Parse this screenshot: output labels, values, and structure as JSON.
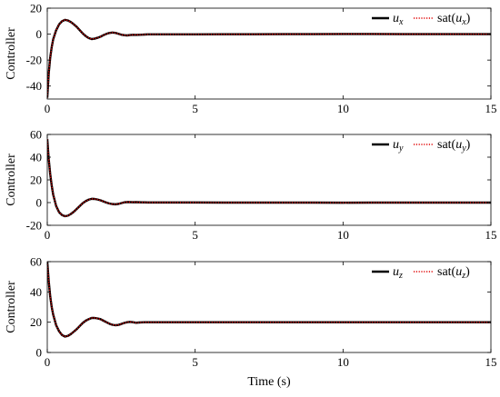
{
  "colors": {
    "u_line": "#000000",
    "sat_line": "#e00000",
    "axes": "#000000",
    "background": "#ffffff"
  },
  "chart_data": [
    {
      "type": "line",
      "ylabel": "Controller",
      "xlabel": "",
      "xlim": [
        0,
        15
      ],
      "ylim": [
        -50,
        20
      ],
      "xticks": [
        0,
        5,
        10,
        15
      ],
      "yticks": [
        -40,
        -20,
        0,
        20
      ],
      "legend": {
        "placement": "top-right",
        "u_symbol": "u",
        "u_sub": "x",
        "sat_prefix": "sat(",
        "sat_symbol": "u",
        "sat_sub": "x",
        "sat_suffix": ")"
      },
      "series": [
        {
          "style": "solid",
          "x": [
            0,
            0.05,
            0.1,
            0.15,
            0.2,
            0.3,
            0.4,
            0.5,
            0.6,
            0.7,
            0.8,
            0.9,
            1.0,
            1.1,
            1.2,
            1.3,
            1.4,
            1.5,
            1.6,
            1.7,
            1.8,
            1.9,
            2.0,
            2.1,
            2.2,
            2.3,
            2.4,
            2.5,
            2.6,
            2.7,
            2.8,
            2.9,
            3.0,
            3.1,
            3.2,
            3.3,
            3.4,
            3.5,
            4.0,
            5.0,
            6.0,
            7.0,
            8.0,
            9.0,
            10.0,
            11.0,
            12.0,
            13.0,
            14.0,
            15.0
          ],
          "y": [
            -49,
            -30,
            -18,
            -10,
            -4,
            3,
            7.5,
            10,
            11,
            10.5,
            9.3,
            7.5,
            5.5,
            3,
            0.5,
            -1.5,
            -3,
            -3.8,
            -3.5,
            -2.8,
            -2,
            -0.8,
            0.2,
            0.9,
            1.2,
            1,
            0.3,
            -0.4,
            -0.8,
            -1,
            -0.7,
            -0.5,
            -0.6,
            -0.5,
            -0.4,
            -0.3,
            -0.2,
            -0.2,
            -0.2,
            -0.2,
            -0.1,
            -0.1,
            0,
            0,
            0.1,
            0.1,
            0,
            0,
            0,
            0
          ]
        },
        {
          "style": "dotted",
          "x": [
            0,
            0.05,
            0.1,
            0.15,
            0.2,
            0.3,
            0.4,
            0.5,
            0.6,
            0.7,
            0.8,
            0.9,
            1.0,
            1.1,
            1.2,
            1.3,
            1.4,
            1.5,
            1.6,
            1.7,
            1.8,
            1.9,
            2.0,
            2.1,
            2.2,
            2.3,
            2.4,
            2.5,
            2.6,
            2.7,
            2.8,
            2.9,
            3.0,
            3.1,
            3.2,
            3.3,
            3.4,
            3.5,
            4.0,
            5.0,
            6.0,
            7.0,
            8.0,
            9.0,
            10.0,
            11.0,
            12.0,
            13.0,
            14.0,
            15.0
          ],
          "y": [
            -49,
            -30,
            -18,
            -10,
            -4,
            3,
            7.5,
            10,
            11,
            10.5,
            9.3,
            7.5,
            5.5,
            3,
            0.5,
            -1.5,
            -3,
            -3.8,
            -3.5,
            -2.8,
            -2,
            -0.8,
            0.2,
            0.9,
            1.2,
            1,
            0.3,
            -0.4,
            -0.8,
            -1,
            -0.7,
            -0.5,
            -0.6,
            -0.5,
            -0.4,
            -0.3,
            -0.2,
            -0.2,
            -0.2,
            -0.2,
            -0.1,
            -0.1,
            0,
            0,
            0.1,
            0.1,
            0,
            0,
            0,
            0
          ]
        }
      ]
    },
    {
      "type": "line",
      "ylabel": "Controller",
      "xlabel": "",
      "xlim": [
        0,
        15
      ],
      "ylim": [
        -20,
        60
      ],
      "xticks": [
        0,
        5,
        10,
        15
      ],
      "yticks": [
        -20,
        0,
        20,
        40,
        60
      ],
      "legend": {
        "placement": "top-right",
        "u_symbol": "u",
        "u_sub": "y",
        "sat_prefix": "sat(",
        "sat_symbol": "u",
        "sat_sub": "y",
        "sat_suffix": ")"
      },
      "series": [
        {
          "style": "solid",
          "x": [
            0,
            0.05,
            0.1,
            0.15,
            0.2,
            0.3,
            0.4,
            0.5,
            0.6,
            0.7,
            0.8,
            0.9,
            1.0,
            1.1,
            1.2,
            1.3,
            1.4,
            1.5,
            1.6,
            1.7,
            1.8,
            1.9,
            2.0,
            2.1,
            2.2,
            2.3,
            2.4,
            2.5,
            2.6,
            2.7,
            2.8,
            2.9,
            3.0,
            3.1,
            3.2,
            3.3,
            3.4,
            3.5,
            4.0,
            5.0,
            6.0,
            7.0,
            8.0,
            9.0,
            10.0,
            11.0,
            12.0,
            13.0,
            14.0,
            15.0
          ],
          "y": [
            56,
            38,
            25,
            15,
            7,
            -3,
            -8.5,
            -11,
            -12,
            -11.5,
            -10,
            -8,
            -5.5,
            -3,
            -0.5,
            1.3,
            2.6,
            3.3,
            3.2,
            2.7,
            2,
            1,
            0,
            -0.8,
            -1.3,
            -1.5,
            -1.2,
            -0.5,
            0.2,
            0.5,
            0.4,
            0.3,
            0.4,
            0.3,
            0.2,
            0.2,
            0.1,
            0.1,
            0.1,
            0.1,
            0,
            0,
            0,
            0,
            -0.1,
            0,
            0,
            0,
            0,
            0
          ]
        },
        {
          "style": "dotted",
          "x": [
            0,
            0.05,
            0.1,
            0.15,
            0.2,
            0.3,
            0.4,
            0.5,
            0.6,
            0.7,
            0.8,
            0.9,
            1.0,
            1.1,
            1.2,
            1.3,
            1.4,
            1.5,
            1.6,
            1.7,
            1.8,
            1.9,
            2.0,
            2.1,
            2.2,
            2.3,
            2.4,
            2.5,
            2.6,
            2.7,
            2.8,
            2.9,
            3.0,
            3.1,
            3.2,
            3.3,
            3.4,
            3.5,
            4.0,
            5.0,
            6.0,
            7.0,
            8.0,
            9.0,
            10.0,
            11.0,
            12.0,
            13.0,
            14.0,
            15.0
          ],
          "y": [
            56,
            38,
            25,
            15,
            7,
            -3,
            -8.5,
            -11,
            -12,
            -11.5,
            -10,
            -8,
            -5.5,
            -3,
            -0.5,
            1.3,
            2.6,
            3.3,
            3.2,
            2.7,
            2,
            1,
            0,
            -0.8,
            -1.3,
            -1.5,
            -1.2,
            -0.5,
            0.2,
            0.5,
            0.4,
            0.3,
            0.4,
            0.3,
            0.2,
            0.2,
            0.1,
            0.1,
            0.1,
            0.1,
            0,
            0,
            0,
            0,
            -0.1,
            0,
            0,
            0,
            0,
            0
          ]
        }
      ]
    },
    {
      "type": "line",
      "ylabel": "Controller",
      "xlabel": "Time (s)",
      "xlim": [
        0,
        15
      ],
      "ylim": [
        0,
        60
      ],
      "xticks": [
        0,
        5,
        10,
        15
      ],
      "yticks": [
        0,
        20,
        40,
        60
      ],
      "legend": {
        "placement": "top-right",
        "u_symbol": "u",
        "u_sub": "z",
        "sat_prefix": "sat(",
        "sat_symbol": "u",
        "sat_sub": "z",
        "sat_suffix": ")"
      },
      "series": [
        {
          "style": "solid",
          "x": [
            0,
            0.05,
            0.1,
            0.15,
            0.2,
            0.3,
            0.4,
            0.5,
            0.6,
            0.7,
            0.8,
            0.9,
            1.0,
            1.1,
            1.2,
            1.3,
            1.4,
            1.5,
            1.6,
            1.7,
            1.8,
            1.9,
            2.0,
            2.1,
            2.2,
            2.3,
            2.4,
            2.5,
            2.6,
            2.7,
            2.8,
            2.9,
            3.0,
            3.1,
            3.2,
            3.3,
            3.4,
            3.5,
            4.0,
            5.0,
            6.0,
            7.0,
            8.0,
            9.0,
            10.0,
            11.0,
            12.0,
            13.0,
            14.0,
            15.0
          ],
          "y": [
            60,
            47,
            37,
            30,
            25,
            18,
            14,
            11.5,
            10.5,
            11,
            12.2,
            13.8,
            15.5,
            17.5,
            19.5,
            21,
            22,
            22.8,
            22.8,
            22.5,
            22,
            21,
            20,
            19,
            18.3,
            18,
            18.2,
            18.8,
            19.5,
            20,
            20.2,
            20,
            19.6,
            19.8,
            19.9,
            20,
            20,
            20,
            20,
            20,
            20,
            20,
            20,
            20,
            20,
            20,
            20,
            20,
            20,
            20
          ]
        },
        {
          "style": "dotted",
          "x": [
            0,
            0.05,
            0.1,
            0.15,
            0.2,
            0.3,
            0.4,
            0.5,
            0.6,
            0.7,
            0.8,
            0.9,
            1.0,
            1.1,
            1.2,
            1.3,
            1.4,
            1.5,
            1.6,
            1.7,
            1.8,
            1.9,
            2.0,
            2.1,
            2.2,
            2.3,
            2.4,
            2.5,
            2.6,
            2.7,
            2.8,
            2.9,
            3.0,
            3.1,
            3.2,
            3.3,
            3.4,
            3.5,
            4.0,
            5.0,
            6.0,
            7.0,
            8.0,
            9.0,
            10.0,
            11.0,
            12.0,
            13.0,
            14.0,
            15.0
          ],
          "y": [
            60,
            47,
            37,
            30,
            25,
            18,
            14,
            11.5,
            10.5,
            11,
            12.2,
            13.8,
            15.5,
            17.5,
            19.5,
            21,
            22,
            22.8,
            22.8,
            22.5,
            22,
            21,
            20,
            19,
            18.3,
            18,
            18.2,
            18.8,
            19.5,
            20,
            20.2,
            20,
            19.6,
            19.8,
            19.9,
            20,
            20,
            20,
            20,
            20,
            20,
            20,
            20,
            20,
            20,
            20,
            20,
            20,
            20,
            20
          ]
        }
      ]
    }
  ]
}
